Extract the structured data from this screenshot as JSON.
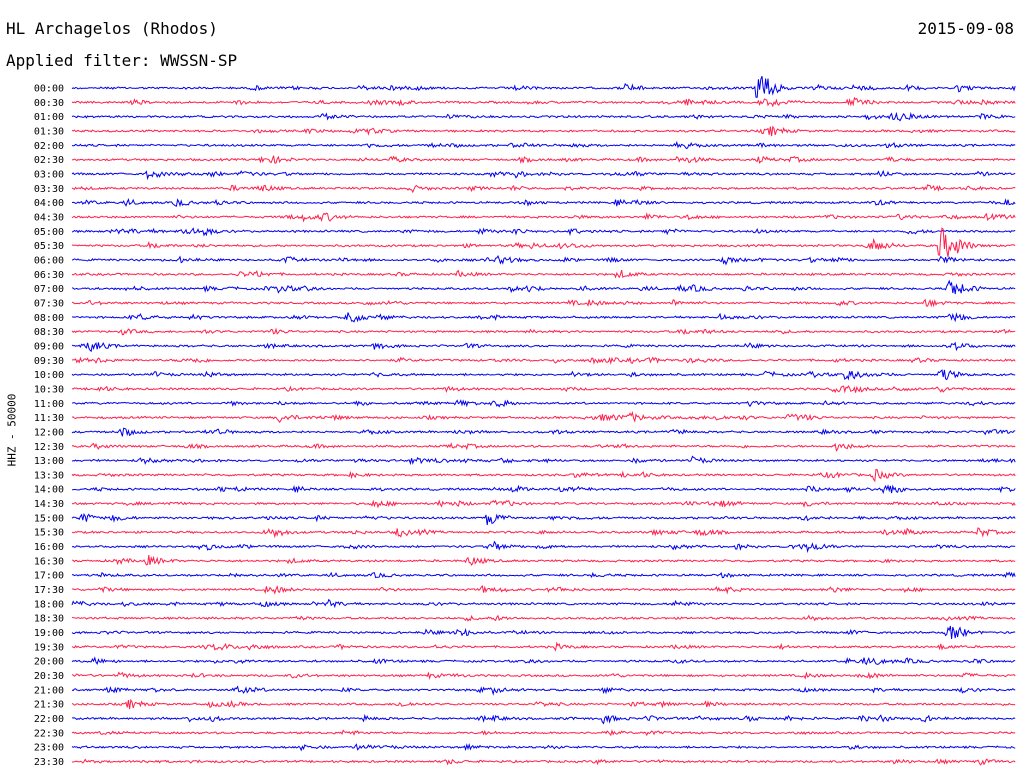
{
  "header": {
    "station": "HL Archagelos (Rhodos)",
    "filter": "Applied filter: WWSSN-SP",
    "date": "2015-09-08"
  },
  "channel_label": "HHZ - 50000",
  "colors": {
    "even": "#0000ee",
    "odd": "#ff1f4b"
  },
  "chart_data": {
    "type": "line",
    "title": "HL Archagelos (Rhodos)",
    "subtitle": "Applied filter: WWSSN-SP",
    "date": "2015-09-08",
    "ylabel": "HHZ - 50000",
    "row_labels": [
      "00:00",
      "00:30",
      "01:00",
      "01:30",
      "02:00",
      "02:30",
      "03:00",
      "03:30",
      "04:00",
      "04:30",
      "05:00",
      "05:30",
      "06:00",
      "06:30",
      "07:00",
      "07:30",
      "08:00",
      "08:30",
      "09:00",
      "09:30",
      "10:00",
      "10:30",
      "11:00",
      "11:30",
      "12:00",
      "12:30",
      "13:00",
      "13:30",
      "14:00",
      "14:30",
      "15:00",
      "15:30",
      "16:00",
      "16:30",
      "17:00",
      "17:30",
      "18:00",
      "18:30",
      "19:00",
      "19:30",
      "20:00",
      "20:30",
      "21:00",
      "21:30",
      "22:00",
      "22:30",
      "23:00",
      "23:30"
    ],
    "series": [
      {
        "row": "00:00",
        "events": [
          [
            0.585,
            0.8
          ],
          [
            0.727,
            4.0
          ],
          [
            0.938,
            0.6
          ]
        ]
      },
      {
        "row": "00:30",
        "events": [
          [
            0.73,
            0.6
          ]
        ]
      },
      {
        "row": "01:00",
        "events": [
          [
            0.88,
            0.3
          ]
        ]
      },
      {
        "row": "01:30",
        "events": [
          [
            0.74,
            0.7
          ]
        ]
      },
      {
        "row": "03:00",
        "events": [
          [
            0.18,
            0.5
          ],
          [
            0.47,
            0.5
          ]
        ]
      },
      {
        "row": "04:00",
        "events": [
          [
            0.11,
            0.6
          ],
          [
            0.99,
            0.5
          ]
        ]
      },
      {
        "row": "05:30",
        "events": [
          [
            0.85,
            0.9
          ],
          [
            0.92,
            3.5
          ]
        ]
      },
      {
        "row": "06:00",
        "events": [
          [
            0.69,
            0.7
          ]
        ]
      },
      {
        "row": "07:00",
        "events": [
          [
            0.22,
            0.6
          ],
          [
            0.93,
            1.6
          ]
        ]
      },
      {
        "row": "08:00",
        "events": [
          [
            0.93,
            1.0
          ]
        ]
      },
      {
        "row": "09:00",
        "events": [
          [
            0.02,
            0.7
          ],
          [
            0.93,
            1.0
          ]
        ]
      },
      {
        "row": "10:00",
        "events": [
          [
            0.82,
            1.1
          ],
          [
            0.92,
            1.2
          ]
        ]
      },
      {
        "row": "11:30",
        "events": [
          [
            0.22,
            0.8
          ],
          [
            0.59,
            0.8
          ],
          [
            0.76,
            0.7
          ]
        ]
      },
      {
        "row": "12:30",
        "events": [
          [
            0.81,
            0.8
          ]
        ]
      },
      {
        "row": "13:00",
        "events": [
          [
            0.36,
            0.6
          ]
        ]
      },
      {
        "row": "13:30",
        "events": [
          [
            0.85,
            1.0
          ]
        ]
      },
      {
        "row": "14:00",
        "events": [
          [
            0.86,
            1.2
          ],
          [
            0.78,
            0.6
          ]
        ]
      },
      {
        "row": "15:00",
        "events": [
          [
            0.44,
            1.3
          ]
        ]
      },
      {
        "row": "15:30",
        "events": [
          [
            0.96,
            0.8
          ]
        ]
      },
      {
        "row": "19:00",
        "events": [
          [
            0.93,
            1.3
          ]
        ]
      },
      {
        "row": "21:30",
        "events": [
          [
            0.06,
            0.8
          ]
        ]
      }
    ]
  }
}
